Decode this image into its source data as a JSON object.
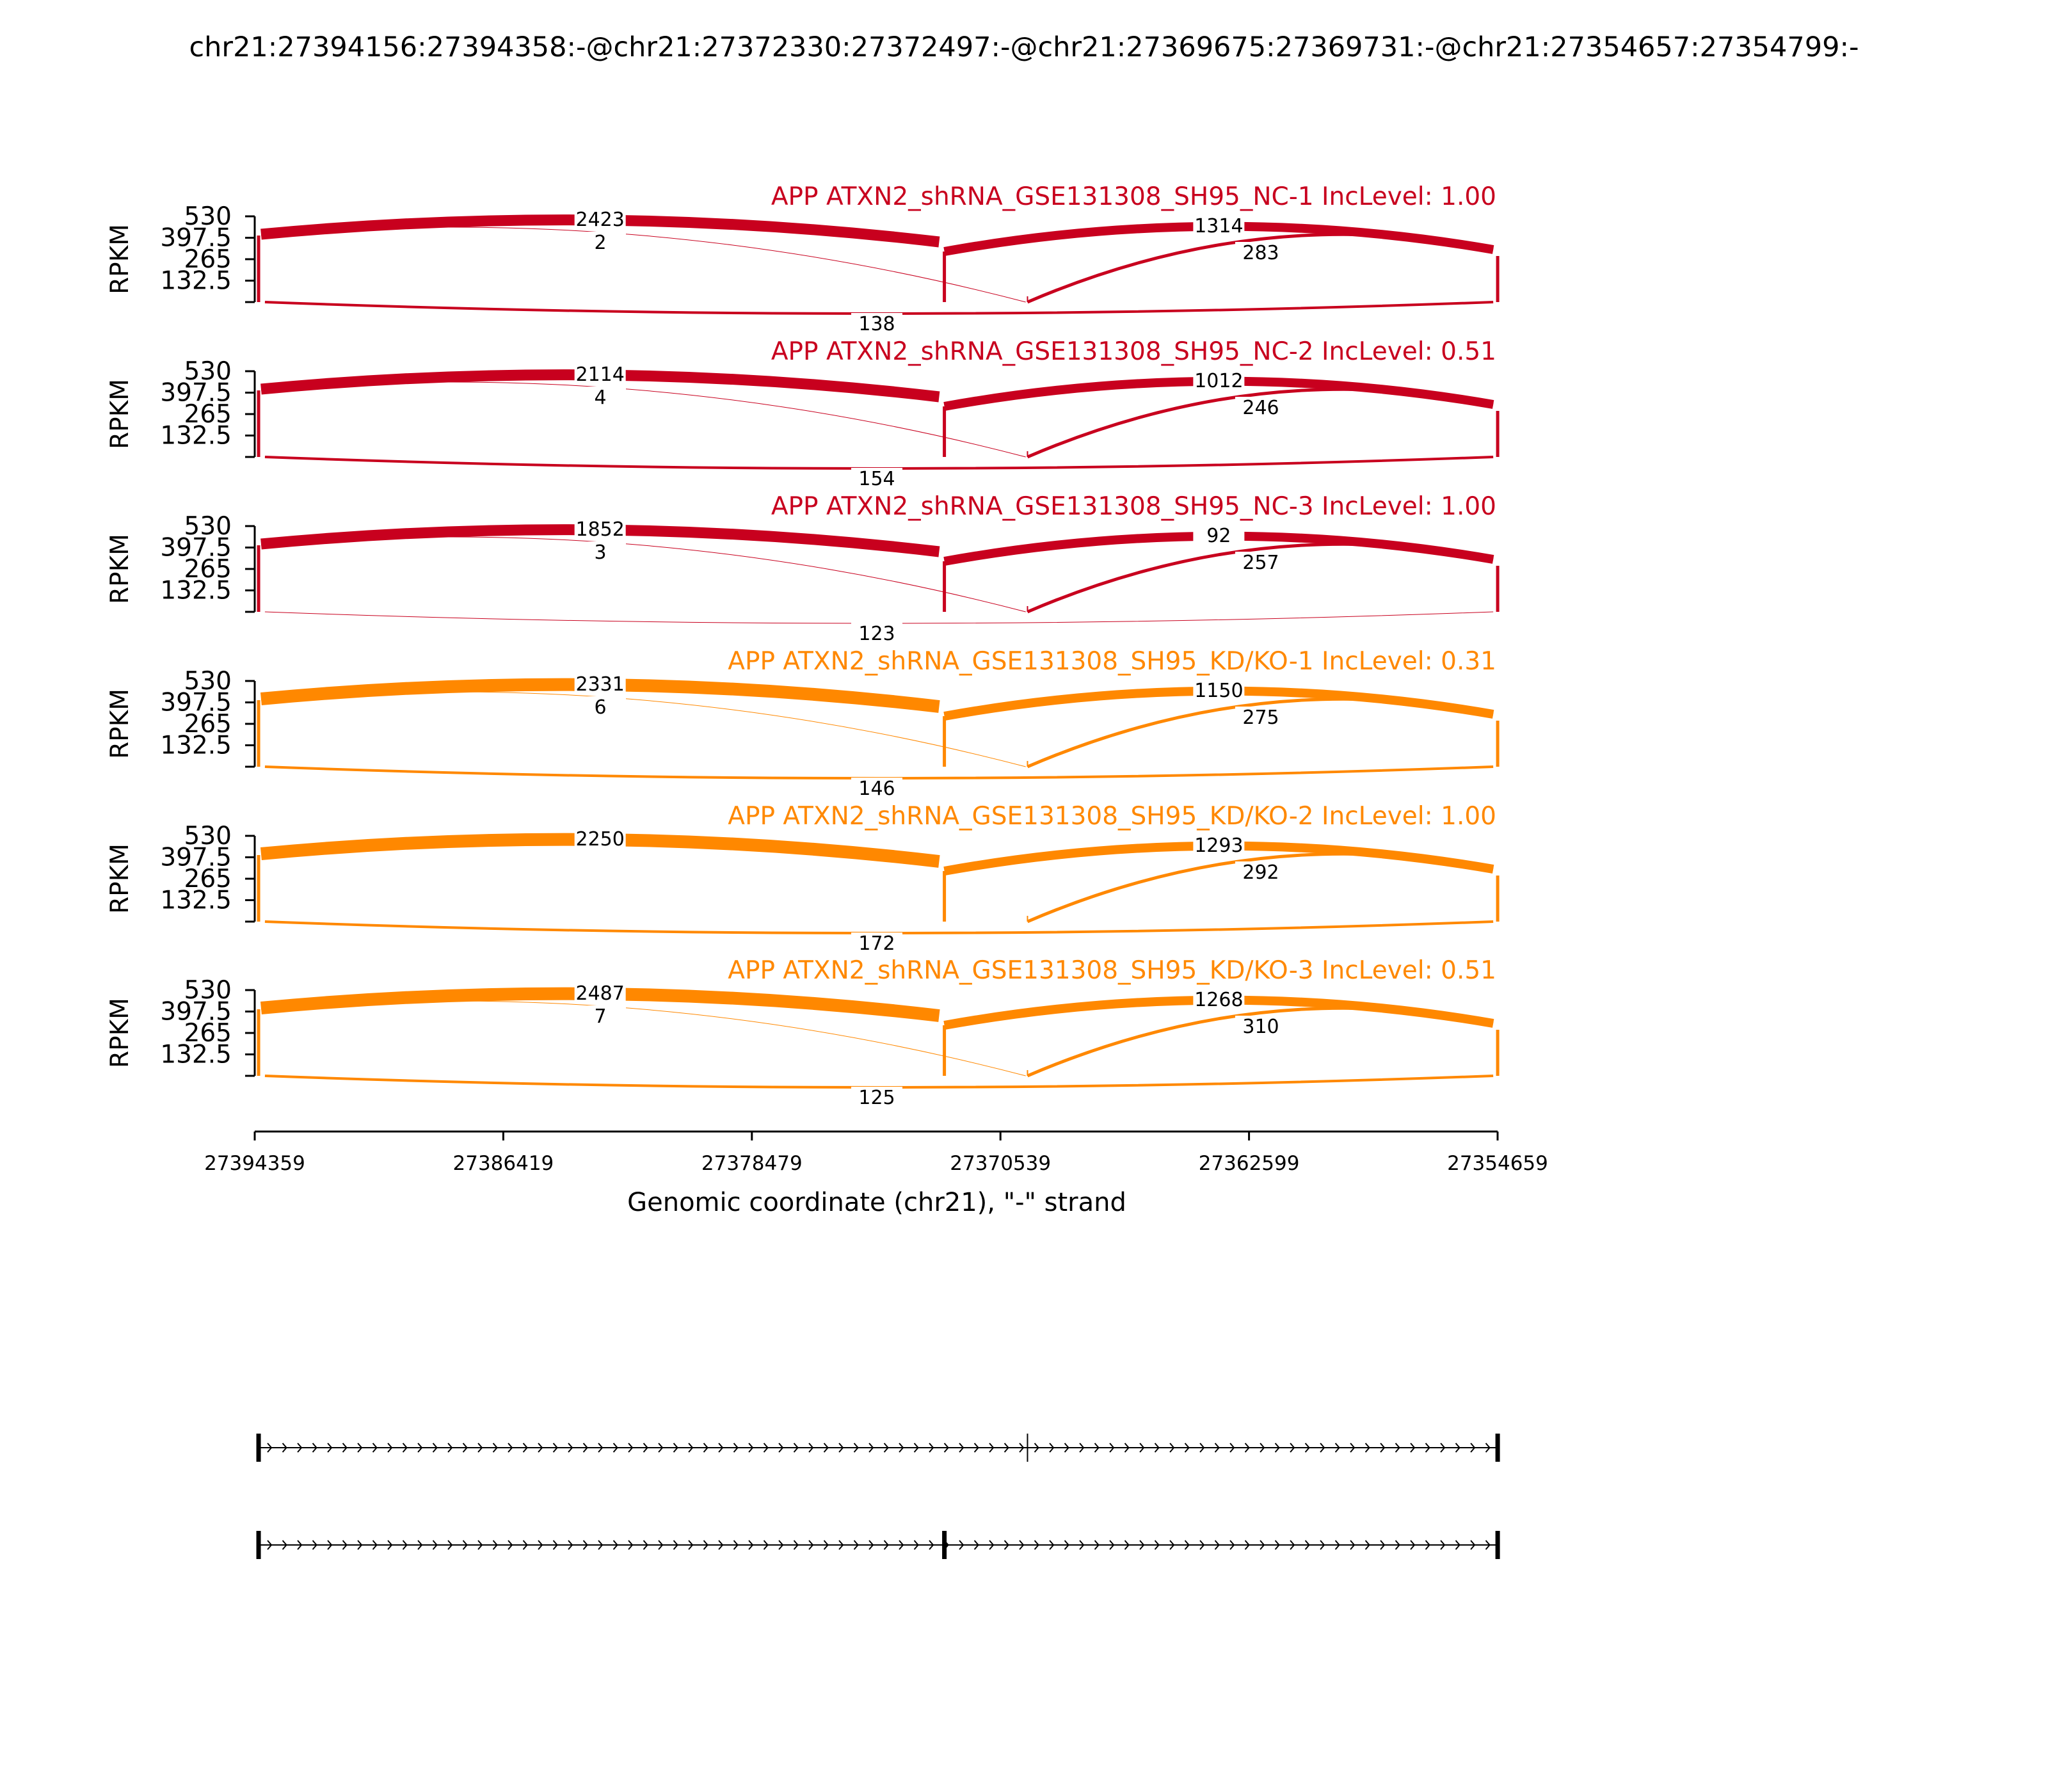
{
  "chart_data": {
    "type": "sashimi",
    "title": "chr21:27394156:27394358:-@chr21:27372330:27372497:-@chr21:27369675:27369731:-@chr21:27354657:27354799:-",
    "xlabel": "Genomic coordinate (chr21), \"-\" strand",
    "ylabel": "RPKM",
    "xlim": [
      27394359,
      27354659
    ],
    "x_ticks": [
      "27394359",
      "27386419",
      "27378479",
      "27370539",
      "27362599",
      "27354659"
    ],
    "y_ticks": [
      "530",
      "397.5",
      "265",
      "132.5"
    ],
    "ylim": [
      0,
      530
    ],
    "colors": {
      "NC": "#c8001e",
      "KD": "#ff8800"
    },
    "exons_upper": [
      27394358,
      27369675,
      27354657
    ],
    "exons_lower": [
      27394358,
      27372330,
      27354657
    ],
    "panels": [
      {
        "label": "APP ATXN2_shRNA_GSE131308_SH95_NC-1 IncLevel: 1.00",
        "group": "NC",
        "junctions": [
          {
            "from": 27394156,
            "to": 27372497,
            "count": "2423",
            "side": "top",
            "w": 17
          },
          {
            "from": 27394156,
            "to": 27369731,
            "count": "2",
            "side": "top",
            "w": 1
          },
          {
            "from": 27372330,
            "to": 27354799,
            "count": "1314",
            "side": "top",
            "w": 14
          },
          {
            "from": 27369675,
            "to": 27354799,
            "count": "283",
            "side": "top",
            "w": 5
          },
          {
            "from": 27394156,
            "to": 27354799,
            "count": "138",
            "side": "bottom",
            "w": 4
          }
        ]
      },
      {
        "label": "APP ATXN2_shRNA_GSE131308_SH95_NC-2 IncLevel: 0.51",
        "group": "NC",
        "junctions": [
          {
            "from": 27394156,
            "to": 27372497,
            "count": "2114",
            "side": "top",
            "w": 17
          },
          {
            "from": 27394156,
            "to": 27369731,
            "count": "4",
            "side": "top",
            "w": 1
          },
          {
            "from": 27372330,
            "to": 27354799,
            "count": "1012",
            "side": "top",
            "w": 14
          },
          {
            "from": 27369675,
            "to": 27354799,
            "count": "246",
            "side": "top",
            "w": 5
          },
          {
            "from": 27394156,
            "to": 27354799,
            "count": "154",
            "side": "bottom",
            "w": 4
          }
        ]
      },
      {
        "label": "APP ATXN2_shRNA_GSE131308_SH95_NC-3 IncLevel: 1.00",
        "group": "NC",
        "junctions": [
          {
            "from": 27394156,
            "to": 27372497,
            "count": "1852",
            "side": "top",
            "w": 17
          },
          {
            "from": 27394156,
            "to": 27369731,
            "count": "3",
            "side": "top",
            "w": 1
          },
          {
            "from": 27372330,
            "to": 27354799,
            "count": "92",
            "side": "top",
            "w": 14
          },
          {
            "from": 27369675,
            "to": 27354799,
            "count": "257",
            "side": "top",
            "w": 5
          },
          {
            "from": 27394156,
            "to": 27354799,
            "count": "123",
            "side": "bottom",
            "w": 1
          }
        ]
      },
      {
        "label": "APP ATXN2_shRNA_GSE131308_SH95_KD/KO-1 IncLevel: 0.31",
        "group": "KD",
        "junctions": [
          {
            "from": 27394156,
            "to": 27372497,
            "count": "2331",
            "side": "top",
            "w": 20
          },
          {
            "from": 27394156,
            "to": 27369731,
            "count": "6",
            "side": "top",
            "w": 1
          },
          {
            "from": 27372330,
            "to": 27354799,
            "count": "1150",
            "side": "top",
            "w": 14
          },
          {
            "from": 27369675,
            "to": 27354799,
            "count": "275",
            "side": "top",
            "w": 5
          },
          {
            "from": 27394156,
            "to": 27354799,
            "count": "146",
            "side": "bottom",
            "w": 4
          }
        ]
      },
      {
        "label": "APP ATXN2_shRNA_GSE131308_SH95_KD/KO-2 IncLevel: 1.00",
        "group": "KD",
        "junctions": [
          {
            "from": 27394156,
            "to": 27372497,
            "count": "2250",
            "side": "top",
            "w": 20
          },
          {
            "from": 27372330,
            "to": 27354799,
            "count": "1293",
            "side": "top",
            "w": 14
          },
          {
            "from": 27369675,
            "to": 27354799,
            "count": "292",
            "side": "top",
            "w": 5
          },
          {
            "from": 27394156,
            "to": 27354799,
            "count": "172",
            "side": "bottom",
            "w": 4
          }
        ]
      },
      {
        "label": "APP ATXN2_shRNA_GSE131308_SH95_KD/KO-3 IncLevel: 0.51",
        "group": "KD",
        "junctions": [
          {
            "from": 27394156,
            "to": 27372497,
            "count": "2487",
            "side": "top",
            "w": 20
          },
          {
            "from": 27394156,
            "to": 27369731,
            "count": "7",
            "side": "top",
            "w": 1
          },
          {
            "from": 27372330,
            "to": 27354799,
            "count": "1268",
            "side": "top",
            "w": 14
          },
          {
            "from": 27369675,
            "to": 27354799,
            "count": "310",
            "side": "top",
            "w": 5
          },
          {
            "from": 27394156,
            "to": 27354799,
            "count": "125",
            "side": "bottom",
            "w": 4
          }
        ]
      }
    ]
  }
}
